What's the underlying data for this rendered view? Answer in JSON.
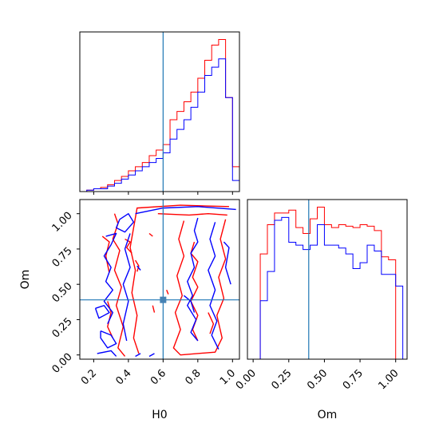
{
  "colors": {
    "series_red": "#ff0000",
    "series_blue": "#0000ff",
    "truth": "#1f77b4",
    "axis": "#000000"
  },
  "chart_data": [
    {
      "panel": "H0 marginal",
      "type": "histogram",
      "xlim": [
        0.12,
        1.04
      ],
      "x_bin_edges": [
        0.16,
        0.2,
        0.24,
        0.28,
        0.32,
        0.36,
        0.4,
        0.44,
        0.48,
        0.52,
        0.56,
        0.6,
        0.64,
        0.68,
        0.72,
        0.76,
        0.8,
        0.84,
        0.88,
        0.92,
        0.96,
        1.0,
        1.04
      ],
      "series": [
        {
          "color": "red",
          "values": [
            1,
            2,
            3,
            5,
            8,
            11,
            15,
            18,
            21,
            26,
            30,
            34,
            52,
            58,
            65,
            72,
            82,
            95,
            106,
            110,
            68,
            18
          ]
        },
        {
          "color": "blue",
          "values": [
            1,
            2,
            2,
            4,
            6,
            9,
            12,
            15,
            18,
            21,
            24,
            28,
            38,
            45,
            52,
            61,
            72,
            84,
            90,
            96,
            68,
            8
          ]
        }
      ],
      "truth_x": 0.6,
      "x_ticks": [
        0.2,
        0.4,
        0.6,
        0.8,
        1.0
      ],
      "y_ticks": []
    },
    {
      "panel": "H0 vs Om",
      "type": "contour",
      "xlabel": "H0",
      "ylabel": "Om",
      "xlim": [
        0.12,
        1.04
      ],
      "ylim": [
        -0.03,
        1.1
      ],
      "x_ticks": [
        "0.2",
        "0.4",
        "0.6",
        "0.8",
        "1.0"
      ],
      "x_tick_values": [
        0.2,
        0.4,
        0.6,
        0.8,
        1.0
      ],
      "y_ticks": [
        "0.00",
        "0.25",
        "0.50",
        "0.75",
        "1.00"
      ],
      "y_tick_values": [
        0,
        0.25,
        0.5,
        0.75,
        1.0
      ],
      "truth": {
        "x": 0.6,
        "y": 0.39
      },
      "series": [
        {
          "color": "red",
          "contours": [
            [
              [
                0.32,
                1.0
              ],
              [
                0.34,
                0.93
              ],
              [
                0.31,
                0.82
              ],
              [
                0.35,
                0.74
              ],
              [
                0.32,
                0.6
              ],
              [
                0.36,
                0.48
              ],
              [
                0.33,
                0.35
              ],
              [
                0.37,
                0.2
              ],
              [
                0.34,
                0.05
              ],
              [
                0.38,
                -0.01
              ]
            ],
            [
              [
                0.25,
                0.84
              ],
              [
                0.29,
                0.8
              ],
              [
                0.27,
                0.7
              ],
              [
                0.29,
                0.58
              ]
            ],
            [
              [
                0.28,
                0.38
              ],
              [
                0.3,
                0.3
              ],
              [
                0.28,
                0.2
              ],
              [
                0.31,
                0.12
              ]
            ],
            [
              [
                0.46,
                0.01
              ],
              [
                0.43,
                0.12
              ],
              [
                0.45,
                0.28
              ],
              [
                0.42,
                0.44
              ],
              [
                0.44,
                0.6
              ],
              [
                0.41,
                0.76
              ],
              [
                0.43,
                0.9
              ],
              [
                0.45,
                1.04
              ],
              [
                0.7,
                1.06
              ],
              [
                0.98,
                1.05
              ]
            ],
            [
              [
                0.57,
                1.0
              ],
              [
                0.75,
                0.99
              ],
              [
                0.86,
                1.0
              ],
              [
                0.97,
                0.99
              ]
            ],
            [
              [
                0.72,
                0.95
              ],
              [
                0.69,
                0.82
              ],
              [
                0.72,
                0.7
              ],
              [
                0.68,
                0.56
              ],
              [
                0.71,
                0.42
              ],
              [
                0.67,
                0.3
              ],
              [
                0.7,
                0.18
              ],
              [
                0.66,
                0.05
              ],
              [
                0.7,
                0.0
              ],
              [
                0.9,
                0.02
              ],
              [
                0.94,
                0.12
              ],
              [
                0.91,
                0.28
              ],
              [
                0.95,
                0.4
              ],
              [
                0.92,
                0.55
              ],
              [
                0.96,
                0.68
              ],
              [
                0.93,
                0.82
              ],
              [
                0.96,
                0.96
              ]
            ],
            [
              [
                0.44,
                0.67
              ],
              [
                0.46,
                0.63
              ],
              [
                0.45,
                0.59
              ]
            ],
            [
              [
                0.78,
                0.8
              ],
              [
                0.76,
                0.72
              ],
              [
                0.8,
                0.66
              ],
              [
                0.77,
                0.55
              ],
              [
                0.8,
                0.48
              ],
              [
                0.76,
                0.38
              ],
              [
                0.8,
                0.28
              ],
              [
                0.77,
                0.18
              ],
              [
                0.8,
                0.1
              ]
            ],
            [
              [
                0.87,
                0.15
              ],
              [
                0.89,
                0.22
              ],
              [
                0.86,
                0.3
              ]
            ],
            [
              [
                0.38,
                0.82
              ],
              [
                0.41,
                0.8
              ],
              [
                0.39,
                0.76
              ],
              [
                0.42,
                0.72
              ]
            ],
            [
              [
                0.54,
                0.35
              ],
              [
                0.55,
                0.3
              ]
            ],
            [
              [
                0.62,
                0.46
              ],
              [
                0.63,
                0.43
              ]
            ],
            [
              [
                0.52,
                0.86
              ],
              [
                0.54,
                0.84
              ]
            ]
          ]
        },
        {
          "color": "blue",
          "contours": [
            [
              [
                0.35,
                0.96
              ],
              [
                0.4,
                1.0
              ],
              [
                0.43,
                0.94
              ],
              [
                0.38,
                0.87
              ],
              [
                0.33,
                0.9
              ],
              [
                0.35,
                0.96
              ]
            ],
            [
              [
                0.27,
                0.84
              ],
              [
                0.33,
                0.86
              ],
              [
                0.3,
                0.78
              ],
              [
                0.26,
                0.7
              ],
              [
                0.3,
                0.62
              ],
              [
                0.27,
                0.52
              ],
              [
                0.31,
                0.46
              ],
              [
                0.26,
                0.38
              ],
              [
                0.31,
                0.3
              ],
              [
                0.28,
                0.22
              ]
            ],
            [
              [
                0.24,
                0.17
              ],
              [
                0.3,
                0.14
              ],
              [
                0.33,
                0.08
              ],
              [
                0.28,
                0.05
              ],
              [
                0.24,
                0.12
              ],
              [
                0.24,
                0.17
              ]
            ],
            [
              [
                0.21,
                0.33
              ],
              [
                0.26,
                0.35
              ],
              [
                0.29,
                0.3
              ],
              [
                0.23,
                0.26
              ],
              [
                0.21,
                0.33
              ]
            ],
            [
              [
                0.39,
                0.1
              ],
              [
                0.37,
                0.22
              ],
              [
                0.4,
                0.38
              ],
              [
                0.37,
                0.5
              ],
              [
                0.41,
                0.62
              ],
              [
                0.38,
                0.75
              ],
              [
                0.41,
                0.86
              ]
            ],
            [
              [
                0.44,
                1.0
              ],
              [
                0.6,
                1.04
              ],
              [
                0.8,
                1.05
              ],
              [
                1.02,
                1.03
              ]
            ],
            [
              [
                0.8,
                0.97
              ],
              [
                0.78,
                0.88
              ],
              [
                0.8,
                0.8
              ],
              [
                0.76,
                0.72
              ],
              [
                0.78,
                0.62
              ],
              [
                0.74,
                0.52
              ],
              [
                0.77,
                0.42
              ],
              [
                0.74,
                0.35
              ],
              [
                0.79,
                0.25
              ],
              [
                0.76,
                0.16
              ],
              [
                0.8,
                0.1
              ]
            ],
            [
              [
                0.9,
                0.94
              ],
              [
                0.87,
                0.82
              ],
              [
                0.9,
                0.7
              ],
              [
                0.86,
                0.6
              ],
              [
                0.9,
                0.46
              ],
              [
                0.87,
                0.35
              ],
              [
                0.91,
                0.24
              ],
              [
                0.88,
                0.14
              ],
              [
                0.92,
                0.04
              ]
            ],
            [
              [
                0.95,
                0.8
              ],
              [
                0.98,
                0.76
              ],
              [
                0.96,
                0.62
              ],
              [
                0.99,
                0.5
              ]
            ],
            [
              [
                0.22,
                0.01
              ],
              [
                0.3,
                0.03
              ],
              [
                0.33,
                -0.01
              ]
            ],
            [
              [
                0.44,
                -0.01
              ],
              [
                0.47,
                0.01
              ]
            ],
            [
              [
                0.52,
                -0.01
              ],
              [
                0.55,
                0.01
              ]
            ],
            [
              [
                0.45,
                0.63
              ],
              [
                0.47,
                0.6
              ]
            ],
            [
              [
                0.72,
                0.42
              ],
              [
                0.76,
                0.38
              ],
              [
                0.78,
                0.3
              ]
            ]
          ]
        }
      ]
    },
    {
      "panel": "Om marginal",
      "type": "histogram",
      "xlabel": "Om",
      "xlim": [
        -0.04,
        1.08
      ],
      "x_bin_edges": [
        0.0,
        0.05,
        0.1,
        0.15,
        0.2,
        0.25,
        0.3,
        0.35,
        0.4,
        0.45,
        0.5,
        0.55,
        0.6,
        0.65,
        0.7,
        0.75,
        0.8,
        0.85,
        0.9,
        0.95,
        1.0,
        1.05
      ],
      "series": [
        {
          "color": "red",
          "values": [
            0,
            72,
            92,
            100,
            100,
            102,
            90,
            86,
            96,
            104,
            92,
            90,
            92,
            91,
            90,
            92,
            91,
            88,
            70,
            68,
            0
          ]
        },
        {
          "color": "blue",
          "values": [
            0,
            40,
            60,
            95,
            97,
            80,
            78,
            75,
            78,
            92,
            78,
            78,
            76,
            72,
            62,
            66,
            78,
            74,
            58,
            58,
            50
          ]
        }
      ],
      "truth_x": 0.39,
      "x_ticks": [
        "0.00",
        "0.25",
        "0.50",
        "0.75",
        "1.00"
      ],
      "x_tick_values": [
        0,
        0.25,
        0.5,
        0.75,
        1.0
      ],
      "y_ticks": []
    }
  ]
}
